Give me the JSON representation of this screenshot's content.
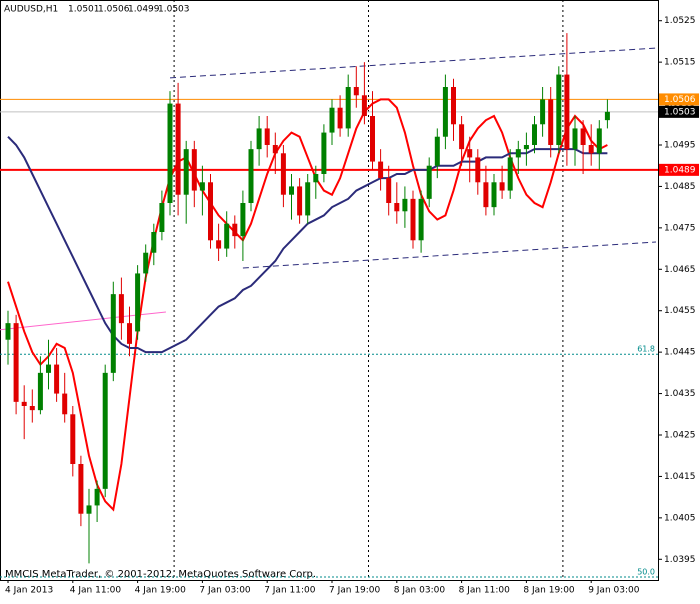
{
  "chart_data": {
    "type": "candlestick",
    "title": "AUDUSD,H1",
    "watermark": "MMCIS MetaTrader, © 2001-2012, MetaQuotes Software Corp.",
    "categories": [
      "4 Jan 2013",
      null,
      null,
      null,
      null,
      null,
      null,
      null,
      "4 Jan 11:00",
      null,
      null,
      null,
      null,
      null,
      null,
      null,
      "4 Jan 19:00",
      null,
      null,
      null,
      null,
      null,
      null,
      null,
      "7 Jan 03:00",
      null,
      null,
      null,
      null,
      null,
      null,
      null,
      "7 Jan 11:00",
      null,
      null,
      null,
      null,
      null,
      null,
      null,
      "7 Jan 19:00",
      null,
      null,
      null,
      null,
      null,
      null,
      null,
      "8 Jan 03:00",
      null,
      null,
      null,
      null,
      null,
      null,
      null,
      "8 Jan 11:00",
      null,
      null,
      null,
      null,
      null,
      null,
      null,
      "8 Jan 19:00",
      null,
      null,
      null,
      null,
      null,
      null,
      null,
      "9 Jan 03:00",
      null,
      null
    ],
    "open": [
      1.0448,
      1.0452,
      1.0433,
      1.0432,
      1.0431,
      1.044,
      1.0442,
      1.0435,
      1.043,
      1.0418,
      1.0406,
      1.0408,
      1.0412,
      1.044,
      1.0459,
      1.0452,
      1.045,
      1.0464,
      1.0469,
      1.0474,
      1.0481,
      1.0505,
      1.0483,
      1.0494,
      1.0484,
      1.0486,
      1.0472,
      1.047,
      1.0476,
      1.0473,
      1.0481,
      1.0494,
      1.0499,
      1.0495,
      1.0493,
      1.0483,
      1.0485,
      1.0478,
      1.0486,
      1.0488,
      1.0498,
      1.0504,
      1.0499,
      1.0509,
      1.0507,
      1.0502,
      1.0491,
      1.0487,
      1.0481,
      1.0479,
      1.0482,
      1.0472,
      1.0482,
      1.049,
      1.0497,
      1.0509,
      1.05,
      1.0494,
      1.0492,
      1.0486,
      1.048,
      1.0486,
      1.0484,
      1.0492,
      1.0494,
      1.0495,
      1.05,
      1.0506,
      1.0495,
      1.0512,
      1.0494,
      1.0499,
      1.0495,
      1.0493,
      1.0501
    ],
    "high": [
      1.0455,
      1.0454,
      1.0437,
      1.0436,
      1.0444,
      1.0448,
      1.0446,
      1.044,
      1.0432,
      1.042,
      1.0412,
      1.0414,
      1.0442,
      1.0462,
      1.0463,
      1.0456,
      1.0466,
      1.0471,
      1.0476,
      1.0484,
      1.0508,
      1.051,
      1.0496,
      1.0496,
      1.049,
      1.0488,
      1.0476,
      1.0479,
      1.0478,
      1.0484,
      1.0496,
      1.0502,
      1.0502,
      1.0498,
      1.0495,
      1.0488,
      1.0487,
      1.0488,
      1.049,
      1.05,
      1.0506,
      1.0507,
      1.0512,
      1.0514,
      1.0515,
      1.0508,
      1.0494,
      1.049,
      1.0486,
      1.0485,
      1.0484,
      1.0484,
      1.0492,
      1.0499,
      1.0512,
      1.0511,
      1.0502,
      1.0497,
      1.0494,
      1.049,
      1.0488,
      1.049,
      1.0494,
      1.0496,
      1.0498,
      1.0502,
      1.0509,
      1.0509,
      1.0514,
      1.0522,
      1.0502,
      1.0501,
      1.05,
      1.0501,
      1.0506
    ],
    "low": [
      1.0442,
      1.043,
      1.0424,
      1.0428,
      1.043,
      1.0436,
      1.0433,
      1.0428,
      1.0415,
      1.0403,
      1.0394,
      1.0404,
      1.041,
      1.0438,
      1.0448,
      1.0444,
      1.0448,
      1.0462,
      1.0466,
      1.0472,
      1.0478,
      1.0478,
      1.0476,
      1.048,
      1.0478,
      1.047,
      1.0467,
      1.0468,
      1.047,
      1.0467,
      1.0479,
      1.049,
      1.0492,
      1.0488,
      1.048,
      1.0477,
      1.0476,
      1.0476,
      1.0482,
      1.0486,
      1.0495,
      1.0497,
      1.0497,
      1.0504,
      1.05,
      1.0489,
      1.0484,
      1.0478,
      1.0476,
      1.0475,
      1.047,
      1.0469,
      1.048,
      1.0487,
      1.0494,
      1.0496,
      1.049,
      1.0486,
      1.0483,
      1.0478,
      1.0478,
      1.0482,
      1.0482,
      1.0488,
      1.049,
      1.0493,
      1.0497,
      1.0492,
      1.0493,
      1.049,
      1.049,
      1.0488,
      1.049,
      1.0489,
      1.0499
    ],
    "close": [
      1.0452,
      1.0433,
      1.0432,
      1.0431,
      1.044,
      1.0442,
      1.0435,
      1.043,
      1.0418,
      1.0406,
      1.0408,
      1.0412,
      1.044,
      1.0459,
      1.0452,
      1.0447,
      1.0464,
      1.0469,
      1.0474,
      1.0481,
      1.0505,
      1.0483,
      1.0494,
      1.0484,
      1.0486,
      1.0472,
      1.047,
      1.0476,
      1.0473,
      1.0481,
      1.0494,
      1.0499,
      1.0495,
      1.0493,
      1.0483,
      1.0485,
      1.0478,
      1.0486,
      1.0488,
      1.0498,
      1.0504,
      1.0499,
      1.0509,
      1.0507,
      1.0502,
      1.0491,
      1.0487,
      1.0481,
      1.0479,
      1.0482,
      1.0472,
      1.0482,
      1.049,
      1.0497,
      1.0509,
      1.05,
      1.0494,
      1.0492,
      1.0486,
      1.048,
      1.0486,
      1.0484,
      1.0492,
      1.0494,
      1.0495,
      1.05,
      1.0506,
      1.0495,
      1.0512,
      1.0494,
      1.0499,
      1.0495,
      1.0493,
      1.0499,
      1.0503
    ],
    "colors": {
      "up": "#008000",
      "down": "#e00000"
    },
    "overlays": [
      {
        "color": "#ff0000",
        "values": [
          1.0462,
          1.0456,
          1.045,
          1.0445,
          1.0442,
          1.0444,
          1.0447,
          1.0446,
          1.044,
          1.043,
          1.042,
          1.0413,
          1.0409,
          1.0407,
          1.0418,
          1.0434,
          1.045,
          1.0463,
          1.0472,
          1.048,
          1.0487,
          1.0491,
          1.0492,
          1.0488,
          1.0484,
          1.0481,
          1.0478,
          1.0476,
          1.0474,
          1.0472,
          1.0476,
          1.0482,
          1.0488,
          1.0493,
          1.0496,
          1.0498,
          1.0497,
          1.0492,
          1.0487,
          1.0484,
          1.0483,
          1.0487,
          1.0493,
          1.0499,
          1.0503,
          1.0505,
          1.0506,
          1.0506,
          1.0504,
          1.0498,
          1.049,
          1.0483,
          1.0479,
          1.0477,
          1.0478,
          1.0484,
          1.0491,
          1.0496,
          1.0499,
          1.0501,
          1.0502,
          1.0498,
          1.0492,
          1.0487,
          1.0483,
          1.0481,
          1.048,
          1.0486,
          1.0493,
          1.0499,
          1.0502,
          1.05,
          1.0496,
          1.0494,
          1.0495
        ]
      },
      {
        "color": "#2b2b7a",
        "values": [
          1.0497,
          1.0495,
          1.0492,
          1.0488,
          1.0484,
          1.048,
          1.0476,
          1.0472,
          1.0468,
          1.0464,
          1.046,
          1.0456,
          1.0452,
          1.0449,
          1.0447,
          1.0446,
          1.0446,
          1.0445,
          1.0445,
          1.0445,
          1.0446,
          1.0447,
          1.0448,
          1.045,
          1.0452,
          1.0454,
          1.0456,
          1.0457,
          1.0458,
          1.046,
          1.0461,
          1.0463,
          1.0465,
          1.0467,
          1.047,
          1.0472,
          1.0474,
          1.0476,
          1.0477,
          1.0478,
          1.048,
          1.0481,
          1.0482,
          1.0484,
          1.0485,
          1.0486,
          1.0487,
          1.0487,
          1.0488,
          1.0488,
          1.0489,
          1.0489,
          1.0489,
          1.049,
          1.049,
          1.049,
          1.0491,
          1.0491,
          1.0491,
          1.0492,
          1.0492,
          1.0492,
          1.0493,
          1.0493,
          1.0493,
          1.0494,
          1.0494,
          1.0494,
          1.0494,
          1.0494,
          1.0494,
          1.0493,
          1.0493,
          1.0493,
          1.0493
        ]
      }
    ],
    "hlines": [
      {
        "value": 1.0506,
        "color": "#ff8c00",
        "box": "#ff8c00",
        "text": "#ffffff"
      },
      {
        "value": 1.0503,
        "color": "#c0c0c0",
        "box": "#000000",
        "text": "#ffffff"
      },
      {
        "value": 1.0489,
        "color": "#ff0000",
        "box": "#ff0000",
        "text": "#ffffff"
      }
    ],
    "trendlines": [
      {
        "color": "#2b2b7a",
        "x": [
          20,
          80
        ],
        "y": [
          1.05112,
          1.05184
        ]
      },
      {
        "color": "#2b2b7a",
        "x": [
          29,
          80
        ],
        "y": [
          1.04653,
          1.04716
        ]
      },
      {
        "color": "#ff66cc",
        "x": [
          -1,
          19.5
        ],
        "y": [
          1.04504,
          1.04547
        ]
      }
    ],
    "fib_levels": [
      {
        "label": "61.8",
        "value": 1.04445
      },
      {
        "label": "50.0",
        "value": 1.039
      }
    ],
    "period_separators": [
      21,
      45,
      69
    ],
    "ylim": [
      1.039,
      1.053
    ],
    "yticks": [
      1.0395,
      1.0405,
      1.0415,
      1.0425,
      1.0435,
      1.0445,
      1.0455,
      1.0465,
      1.0475,
      1.0485,
      1.0495,
      1.0505,
      1.0515,
      1.0525
    ]
  }
}
